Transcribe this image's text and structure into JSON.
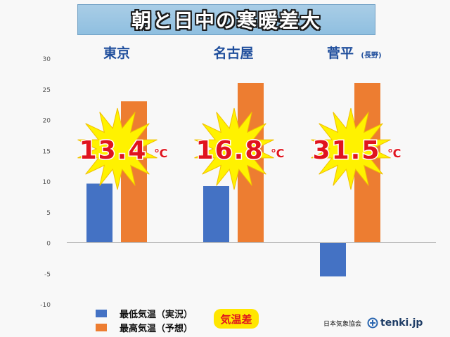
{
  "header": {
    "title": "朝と日中の寒暖差大"
  },
  "chart_data": {
    "type": "bar",
    "categories": [
      "東京",
      "名古屋",
      "菅平"
    ],
    "category_notes": [
      "",
      "",
      "(長野)"
    ],
    "series": [
      {
        "name": "最低気温（実況）",
        "color": "#4472c4",
        "values": [
          9.6,
          9.2,
          -5.5
        ]
      },
      {
        "name": "最高気温（予想）",
        "color": "#ed7d31",
        "values": [
          23.0,
          26.0,
          26.0
        ]
      }
    ],
    "differences": [
      "13.4",
      "16.8",
      "31.5"
    ],
    "difference_unit": "℃",
    "ylim": [
      -10,
      30
    ],
    "yticks": [
      -10,
      -5,
      0,
      5,
      10,
      15,
      20,
      25,
      30
    ],
    "grid": false,
    "legend_position": "bottom-left"
  },
  "legend": {
    "diff_label": "気温差"
  },
  "footer": {
    "source": "日本気象協会",
    "logo_text": "tenki.jp"
  }
}
